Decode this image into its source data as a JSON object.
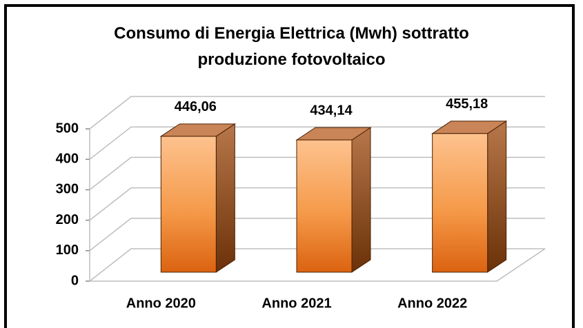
{
  "chart_data": {
    "type": "bar3d",
    "title": "Consumo di Energia Elettrica (Mwh) sottratto produzione fotovoltaico",
    "categories": [
      "Anno 2020",
      "Anno 2021",
      "Anno 2022"
    ],
    "values": [
      446.06,
      434.14,
      455.18
    ],
    "value_labels": [
      "446,06",
      "434,14",
      "455,18"
    ],
    "color": "#f59a4a",
    "ylim": [
      0,
      500
    ],
    "yticks": [
      0,
      100,
      200,
      300,
      400,
      500
    ],
    "grid": true
  }
}
